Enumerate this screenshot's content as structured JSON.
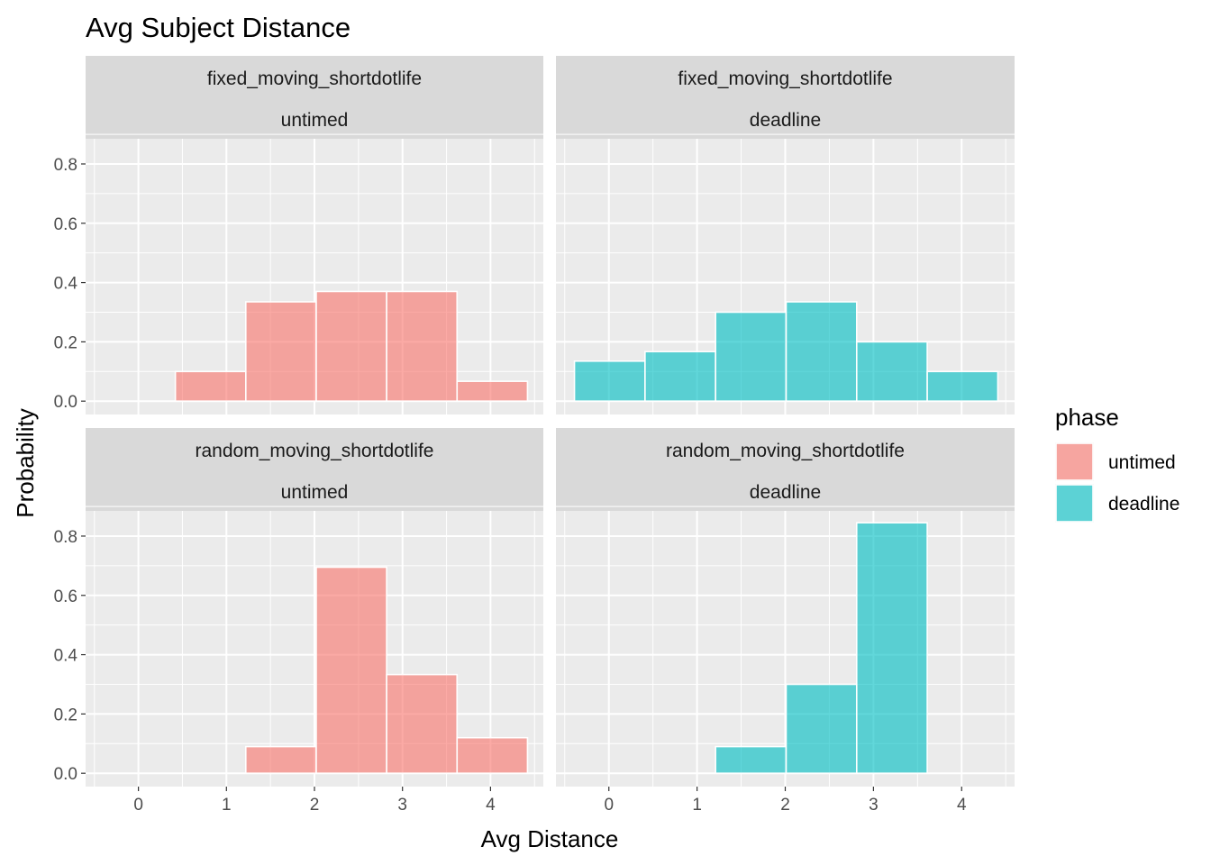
{
  "chart_data": {
    "type": "bar",
    "title": "Avg Subject Distance",
    "xlabel": "Avg Distance",
    "ylabel": "Probability",
    "xlim": [
      -0.6,
      4.6
    ],
    "ylim": [
      -0.045,
      0.885
    ],
    "x_ticks": [
      "0",
      "1",
      "2",
      "3",
      "4"
    ],
    "y_ticks": [
      "0.0",
      "0.2",
      "0.4",
      "0.6",
      "0.8"
    ],
    "grid": true,
    "legend": {
      "title": "phase",
      "position": "right",
      "entries": [
        {
          "label": "untimed",
          "color": "#F8766D"
        },
        {
          "label": "deadline",
          "color": "#00BFC4"
        }
      ]
    },
    "panels": [
      {
        "row_label": "fixed_moving_shortdotlife",
        "col_label": "untimed",
        "phase": "untimed",
        "color": "#F8766D",
        "bins": [
          {
            "x0": 0.42,
            "x1": 1.22,
            "value": 0.1
          },
          {
            "x0": 1.22,
            "x1": 2.02,
            "value": 0.335
          },
          {
            "x0": 2.02,
            "x1": 2.82,
            "value": 0.37
          },
          {
            "x0": 2.82,
            "x1": 3.62,
            "value": 0.37
          },
          {
            "x0": 3.62,
            "x1": 4.42,
            "value": 0.067
          }
        ]
      },
      {
        "row_label": "fixed_moving_shortdotlife",
        "col_label": "deadline",
        "phase": "deadline",
        "color": "#00BFC4",
        "bins": [
          {
            "x0": -0.39,
            "x1": 0.41,
            "value": 0.135
          },
          {
            "x0": 0.41,
            "x1": 1.21,
            "value": 0.167
          },
          {
            "x0": 1.21,
            "x1": 2.01,
            "value": 0.3
          },
          {
            "x0": 2.01,
            "x1": 2.81,
            "value": 0.335
          },
          {
            "x0": 2.81,
            "x1": 3.61,
            "value": 0.2
          },
          {
            "x0": 3.61,
            "x1": 4.41,
            "value": 0.1
          }
        ]
      },
      {
        "row_label": "random_moving_shortdotlife",
        "col_label": "untimed",
        "phase": "untimed",
        "color": "#F8766D",
        "bins": [
          {
            "x0": 1.22,
            "x1": 2.02,
            "value": 0.09
          },
          {
            "x0": 2.02,
            "x1": 2.82,
            "value": 0.695
          },
          {
            "x0": 2.82,
            "x1": 3.62,
            "value": 0.333
          },
          {
            "x0": 3.62,
            "x1": 4.42,
            "value": 0.12
          }
        ]
      },
      {
        "row_label": "random_moving_shortdotlife",
        "col_label": "deadline",
        "phase": "deadline",
        "color": "#00BFC4",
        "bins": [
          {
            "x0": 1.21,
            "x1": 2.01,
            "value": 0.09
          },
          {
            "x0": 2.01,
            "x1": 2.81,
            "value": 0.3
          },
          {
            "x0": 2.81,
            "x1": 3.61,
            "value": 0.845
          }
        ]
      }
    ]
  }
}
